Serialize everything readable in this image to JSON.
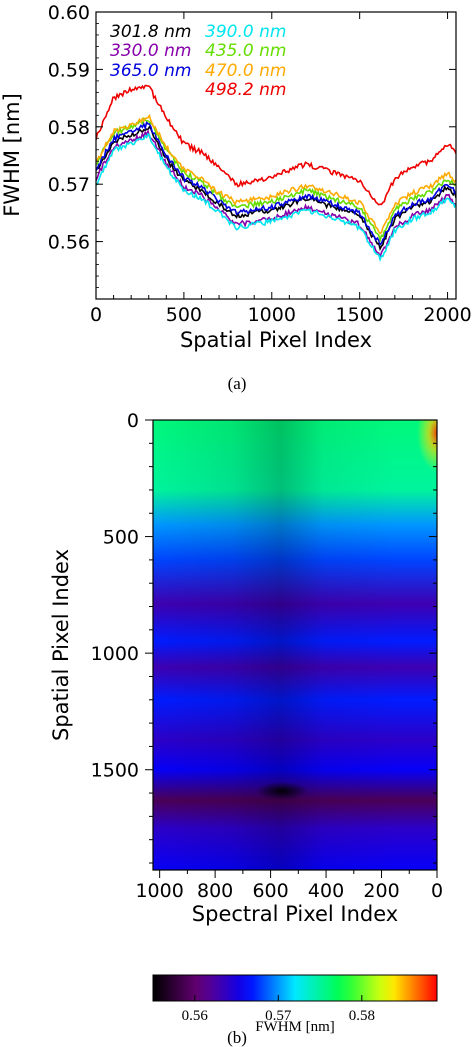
{
  "caption_a": "(a)",
  "caption_b": "(b)",
  "chart_data": [
    {
      "type": "line",
      "xlabel": "Spatial Pixel Index",
      "ylabel": "FWHM [nm]",
      "xlim": [
        0,
        2048
      ],
      "ylim": [
        0.55,
        0.6
      ],
      "xticks": [
        0,
        500,
        1000,
        1500,
        2000
      ],
      "yticks": [
        0.56,
        0.57,
        0.58,
        0.59,
        0.6
      ],
      "grid": false,
      "legend": "top-left",
      "x": [
        0,
        100,
        200,
        300,
        400,
        500,
        600,
        700,
        800,
        900,
        1000,
        1100,
        1200,
        1300,
        1400,
        1500,
        1550,
        1620,
        1700,
        1800,
        1900,
        2000,
        2048
      ],
      "series": [
        {
          "name": "301.8 nm",
          "color": "#000000",
          "values": [
            0.572,
            0.5775,
            0.5785,
            0.58,
            0.5745,
            0.5705,
            0.569,
            0.5665,
            0.5645,
            0.565,
            0.5655,
            0.5665,
            0.5675,
            0.5665,
            0.5655,
            0.5645,
            0.562,
            0.559,
            0.564,
            0.566,
            0.567,
            0.5695,
            0.568
          ]
        },
        {
          "name": "330.0 nm",
          "color": "#8800aa",
          "values": [
            0.571,
            0.5765,
            0.5775,
            0.579,
            0.5735,
            0.5695,
            0.568,
            0.5655,
            0.563,
            0.5635,
            0.564,
            0.565,
            0.566,
            0.565,
            0.564,
            0.563,
            0.5605,
            0.5575,
            0.5625,
            0.5645,
            0.5655,
            0.568,
            0.5665
          ]
        },
        {
          "name": "365.0 nm",
          "color": "#0000dd",
          "values": [
            0.5725,
            0.578,
            0.579,
            0.5805,
            0.575,
            0.571,
            0.5695,
            0.567,
            0.565,
            0.5655,
            0.566,
            0.567,
            0.568,
            0.567,
            0.566,
            0.565,
            0.5625,
            0.5595,
            0.5645,
            0.5665,
            0.5675,
            0.57,
            0.5685
          ]
        },
        {
          "name": "390.0 nm",
          "color": "#00e5ee",
          "values": [
            0.57,
            0.576,
            0.577,
            0.5785,
            0.573,
            0.569,
            0.5675,
            0.565,
            0.5625,
            0.563,
            0.5635,
            0.5645,
            0.5655,
            0.5645,
            0.5635,
            0.5625,
            0.56,
            0.557,
            0.562,
            0.564,
            0.565,
            0.5675,
            0.566
          ]
        },
        {
          "name": "435.0 nm",
          "color": "#66dd00",
          "values": [
            0.5735,
            0.579,
            0.58,
            0.5815,
            0.576,
            0.572,
            0.5705,
            0.568,
            0.566,
            0.5665,
            0.567,
            0.568,
            0.569,
            0.568,
            0.567,
            0.566,
            0.5635,
            0.5605,
            0.5655,
            0.5675,
            0.5685,
            0.571,
            0.5695
          ]
        },
        {
          "name": "470.0 nm",
          "color": "#ffaa00",
          "values": [
            0.5738,
            0.5792,
            0.5802,
            0.5818,
            0.5765,
            0.5725,
            0.571,
            0.5685,
            0.5668,
            0.5673,
            0.5678,
            0.5688,
            0.5698,
            0.5688,
            0.5678,
            0.5668,
            0.5645,
            0.5615,
            0.5665,
            0.5685,
            0.5695,
            0.572,
            0.5705
          ]
        },
        {
          "name": "498.2 nm",
          "color": "#ee0000",
          "values": [
            0.578,
            0.585,
            0.5865,
            0.587,
            0.5815,
            0.577,
            0.5755,
            0.573,
            0.57,
            0.5705,
            0.571,
            0.5725,
            0.5735,
            0.5725,
            0.5715,
            0.5705,
            0.5685,
            0.566,
            0.571,
            0.573,
            0.574,
            0.577,
            0.5755
          ]
        }
      ]
    },
    {
      "type": "heatmap",
      "xlabel": "Spectral Pixel Index",
      "ylabel": "Spatial Pixel Index",
      "xlim": [
        1024,
        0
      ],
      "ylim": [
        0,
        1930
      ],
      "xticks": [
        1000,
        800,
        600,
        400,
        200,
        0
      ],
      "yticks": [
        0,
        500,
        1000,
        1500
      ],
      "colorbar": {
        "label": "FWHM [nm]",
        "range": [
          0.555,
          0.589
        ],
        "ticks": [
          0.56,
          0.57,
          0.58
        ],
        "colors": [
          "#000000",
          "#6a007a",
          "#0000ff",
          "#00e8ff",
          "#00ff44",
          "#ffff00",
          "#ff0000"
        ]
      },
      "rows": [
        {
          "y": 0,
          "v": 0.576
        },
        {
          "y": 300,
          "v": 0.575
        },
        {
          "y": 450,
          "v": 0.57
        },
        {
          "y": 600,
          "v": 0.568
        },
        {
          "y": 790,
          "v": 0.563
        },
        {
          "y": 950,
          "v": 0.567
        },
        {
          "y": 1060,
          "v": 0.563
        },
        {
          "y": 1200,
          "v": 0.567
        },
        {
          "y": 1370,
          "v": 0.564
        },
        {
          "y": 1500,
          "v": 0.566
        },
        {
          "y": 1630,
          "v": 0.559
        },
        {
          "y": 1750,
          "v": 0.564
        },
        {
          "y": 1930,
          "v": 0.566
        }
      ]
    }
  ]
}
